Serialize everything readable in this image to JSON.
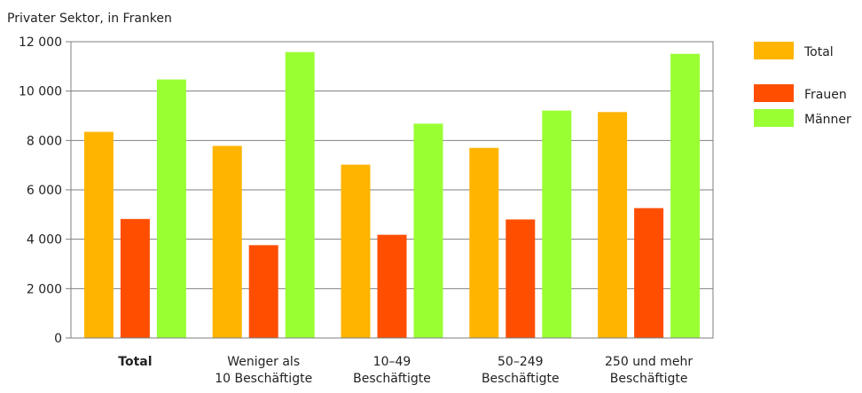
{
  "chart_data": {
    "type": "bar",
    "title": "",
    "subtitle": "Privater Sektor, in Franken",
    "xlabel": "",
    "ylabel": "",
    "ylim": [
      0,
      12000
    ],
    "yticks": [
      0,
      2000,
      4000,
      6000,
      8000,
      10000,
      12000
    ],
    "ytick_labels": [
      "0",
      "2 000",
      "4 000",
      "6 000",
      "8 000",
      "10 000",
      "12 000"
    ],
    "grid": true,
    "legend_position": "right",
    "categories": [
      {
        "line1": "Total",
        "line2": "",
        "bold": true
      },
      {
        "line1": "Weniger als",
        "line2": "10 Beschäftigte",
        "bold": false
      },
      {
        "line1": "10–49",
        "line2": "Beschäftigte",
        "bold": false
      },
      {
        "line1": "50–249",
        "line2": "Beschäftigte",
        "bold": false
      },
      {
        "line1": "250 und mehr",
        "line2": "Beschäftigte",
        "bold": false
      }
    ],
    "series": [
      {
        "name": "Total",
        "color": "#FFB400",
        "values": [
          8350,
          7780,
          7020,
          7700,
          9150
        ]
      },
      {
        "name": "Frauen",
        "color": "#FF4E00",
        "values": [
          4820,
          3760,
          4180,
          4800,
          5260
        ]
      },
      {
        "name": "Männer",
        "color": "#99FF33",
        "values": [
          10470,
          11580,
          8680,
          9210,
          11510
        ]
      }
    ]
  }
}
